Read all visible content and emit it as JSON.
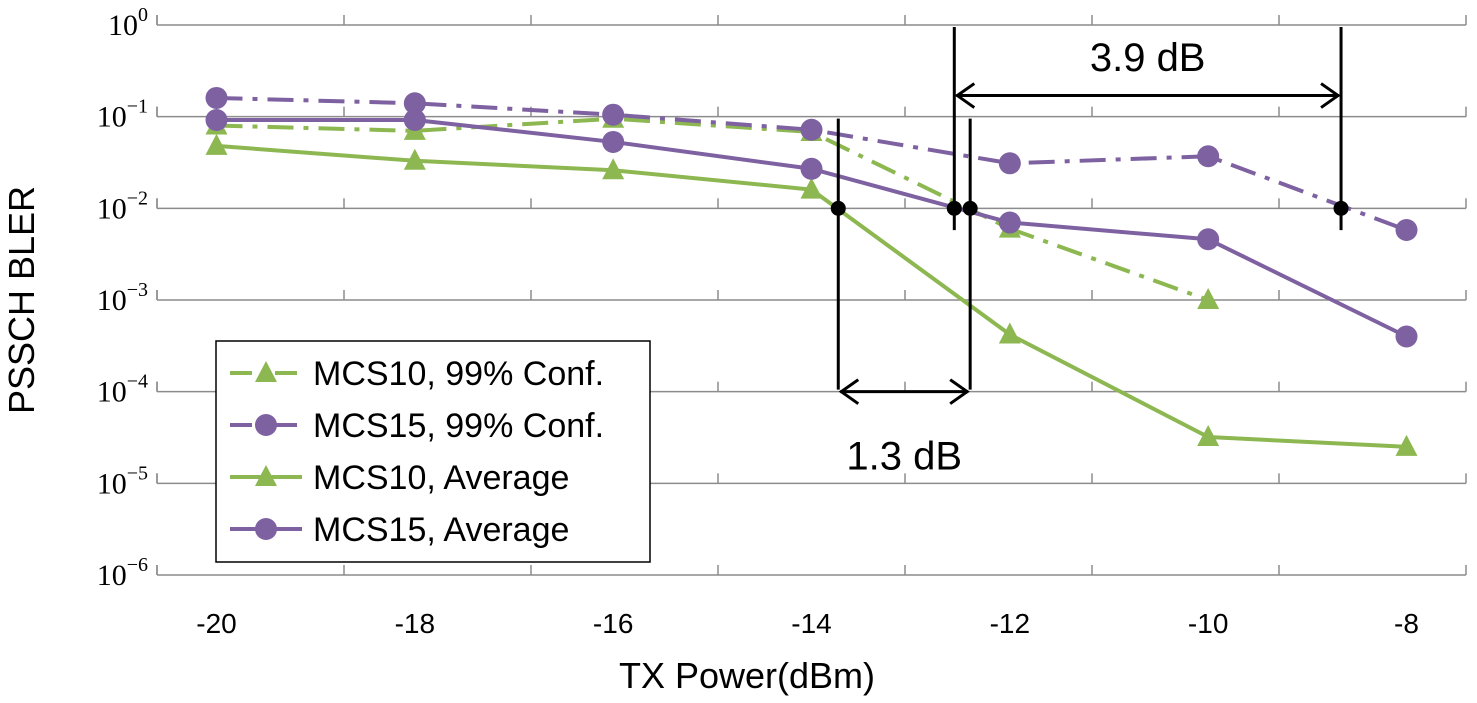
{
  "chart_data": {
    "type": "line",
    "title": "",
    "xlabel": "TX Power(dBm)",
    "ylabel": "PSSCH BLER",
    "yscale": "log",
    "xlim": [
      -20.6,
      -7.4
    ],
    "ylim_exponent": [
      -6,
      0
    ],
    "x_ticks": [
      -20,
      -18,
      -16,
      -14,
      -12,
      -10,
      -8
    ],
    "x_tick_labels": [
      "-20",
      "-18",
      "-16",
      "-14",
      "-12",
      "-10",
      "-8"
    ],
    "y_ticks": [
      {
        "base": "10",
        "exp": "0",
        "value": 1
      },
      {
        "base": "10",
        "exp": "−1",
        "value": 0.1
      },
      {
        "base": "10",
        "exp": "−2",
        "value": 0.01
      },
      {
        "base": "10",
        "exp": "−3",
        "value": 0.001
      },
      {
        "base": "10",
        "exp": "−4",
        "value": 0.0001
      },
      {
        "base": "10",
        "exp": "−5",
        "value": 1e-05
      },
      {
        "base": "10",
        "exp": "−6",
        "value": 1e-06
      }
    ],
    "grid": true,
    "series": [
      {
        "name": "MCS10, 99% Conf.",
        "style": "dashdot",
        "marker": "triangle",
        "color": "#8db750",
        "x": [
          -20,
          -18,
          -16,
          -14,
          -12,
          -10
        ],
        "y": [
          0.08,
          0.07,
          0.095,
          0.068,
          0.006,
          0.001
        ]
      },
      {
        "name": "MCS15, 99% Conf.",
        "style": "dashdot",
        "marker": "circle",
        "color": "#7d61a1",
        "x": [
          -20,
          -18,
          -16,
          -14,
          -12,
          -10,
          -8
        ],
        "y": [
          0.16,
          0.14,
          0.105,
          0.072,
          0.031,
          0.037,
          0.0058
        ]
      },
      {
        "name": "MCS10, Average",
        "style": "solid",
        "marker": "triangle",
        "color": "#8db750",
        "x": [
          -20,
          -18,
          -16,
          -14,
          -12,
          -10,
          -8
        ],
        "y": [
          0.048,
          0.033,
          0.026,
          0.016,
          0.00042,
          3.2e-05,
          2.5e-05
        ]
      },
      {
        "name": "MCS15, Average",
        "style": "solid",
        "marker": "circle",
        "color": "#7d61a1",
        "x": [
          -20,
          -18,
          -16,
          -14,
          -12,
          -10,
          -8
        ],
        "y": [
          0.092,
          0.092,
          0.053,
          0.027,
          0.007,
          0.0046,
          0.0004
        ]
      }
    ],
    "annotations": [
      {
        "label": "1.3 dB",
        "x1": -13.73,
        "x2": -12.4,
        "y": 0.0001,
        "label_y": 2e-05
      },
      {
        "label": "3.9 dB",
        "x1": -12.56,
        "x2": -8.66,
        "y": 0.17,
        "label_y": 0.45
      }
    ],
    "reference_points": [
      {
        "x": -13.73,
        "y": 0.01
      },
      {
        "x": -12.56,
        "y": 0.01
      },
      {
        "x": -12.4,
        "y": 0.01
      },
      {
        "x": -8.66,
        "y": 0.01
      }
    ],
    "legend_position": "bottom-left"
  }
}
